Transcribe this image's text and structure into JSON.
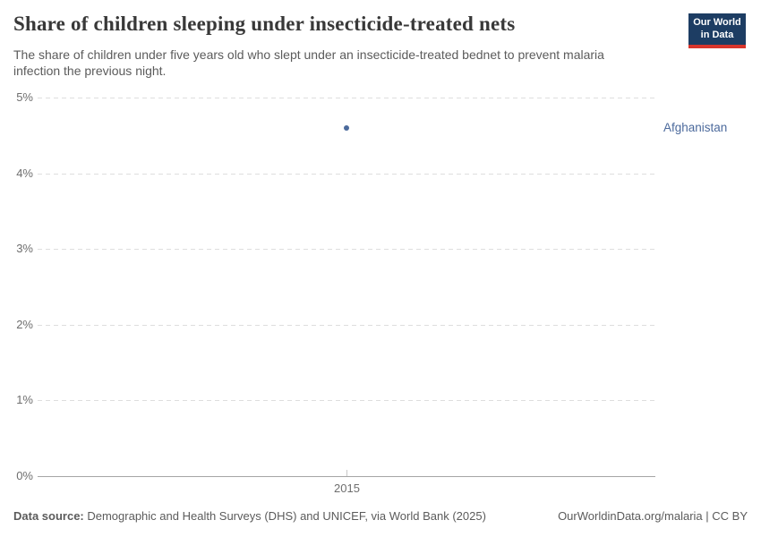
{
  "header": {
    "title": "Share of children sleeping under insecticide-treated nets",
    "subtitle": "The share of children under five years old who slept under an insecticide-treated bednet to prevent malaria infection the previous night.",
    "logo": {
      "line1": "Our World",
      "line2": "in Data",
      "bg_color": "#1d3d63",
      "stripe_color": "#d8352c"
    }
  },
  "chart_data": {
    "type": "scatter",
    "title": "Share of children sleeping under insecticide-treated nets",
    "subtitle": "The share of children under five years old who slept under an insecticide-treated bednet to prevent malaria infection the previous night.",
    "series": [
      {
        "name": "Afghanistan",
        "color": "#4C6A9C",
        "points": [
          {
            "x": 2015,
            "y": 4.6
          }
        ]
      }
    ],
    "x_ticks": [
      "2015"
    ],
    "y_ticks": [
      0,
      1,
      2,
      3,
      4,
      5
    ],
    "y_tick_suffix": "%",
    "ylim": [
      0,
      5
    ],
    "xlabel": "",
    "ylabel": "",
    "grid": "horizontal-dashed",
    "legend_position": "right-inline-label"
  },
  "footer": {
    "source_label": "Data source:",
    "source_text": " Demographic and Health Surveys (DHS) and UNICEF, via World Bank (2025)",
    "right_text": "OurWorldinData.org/malaria | CC BY"
  }
}
